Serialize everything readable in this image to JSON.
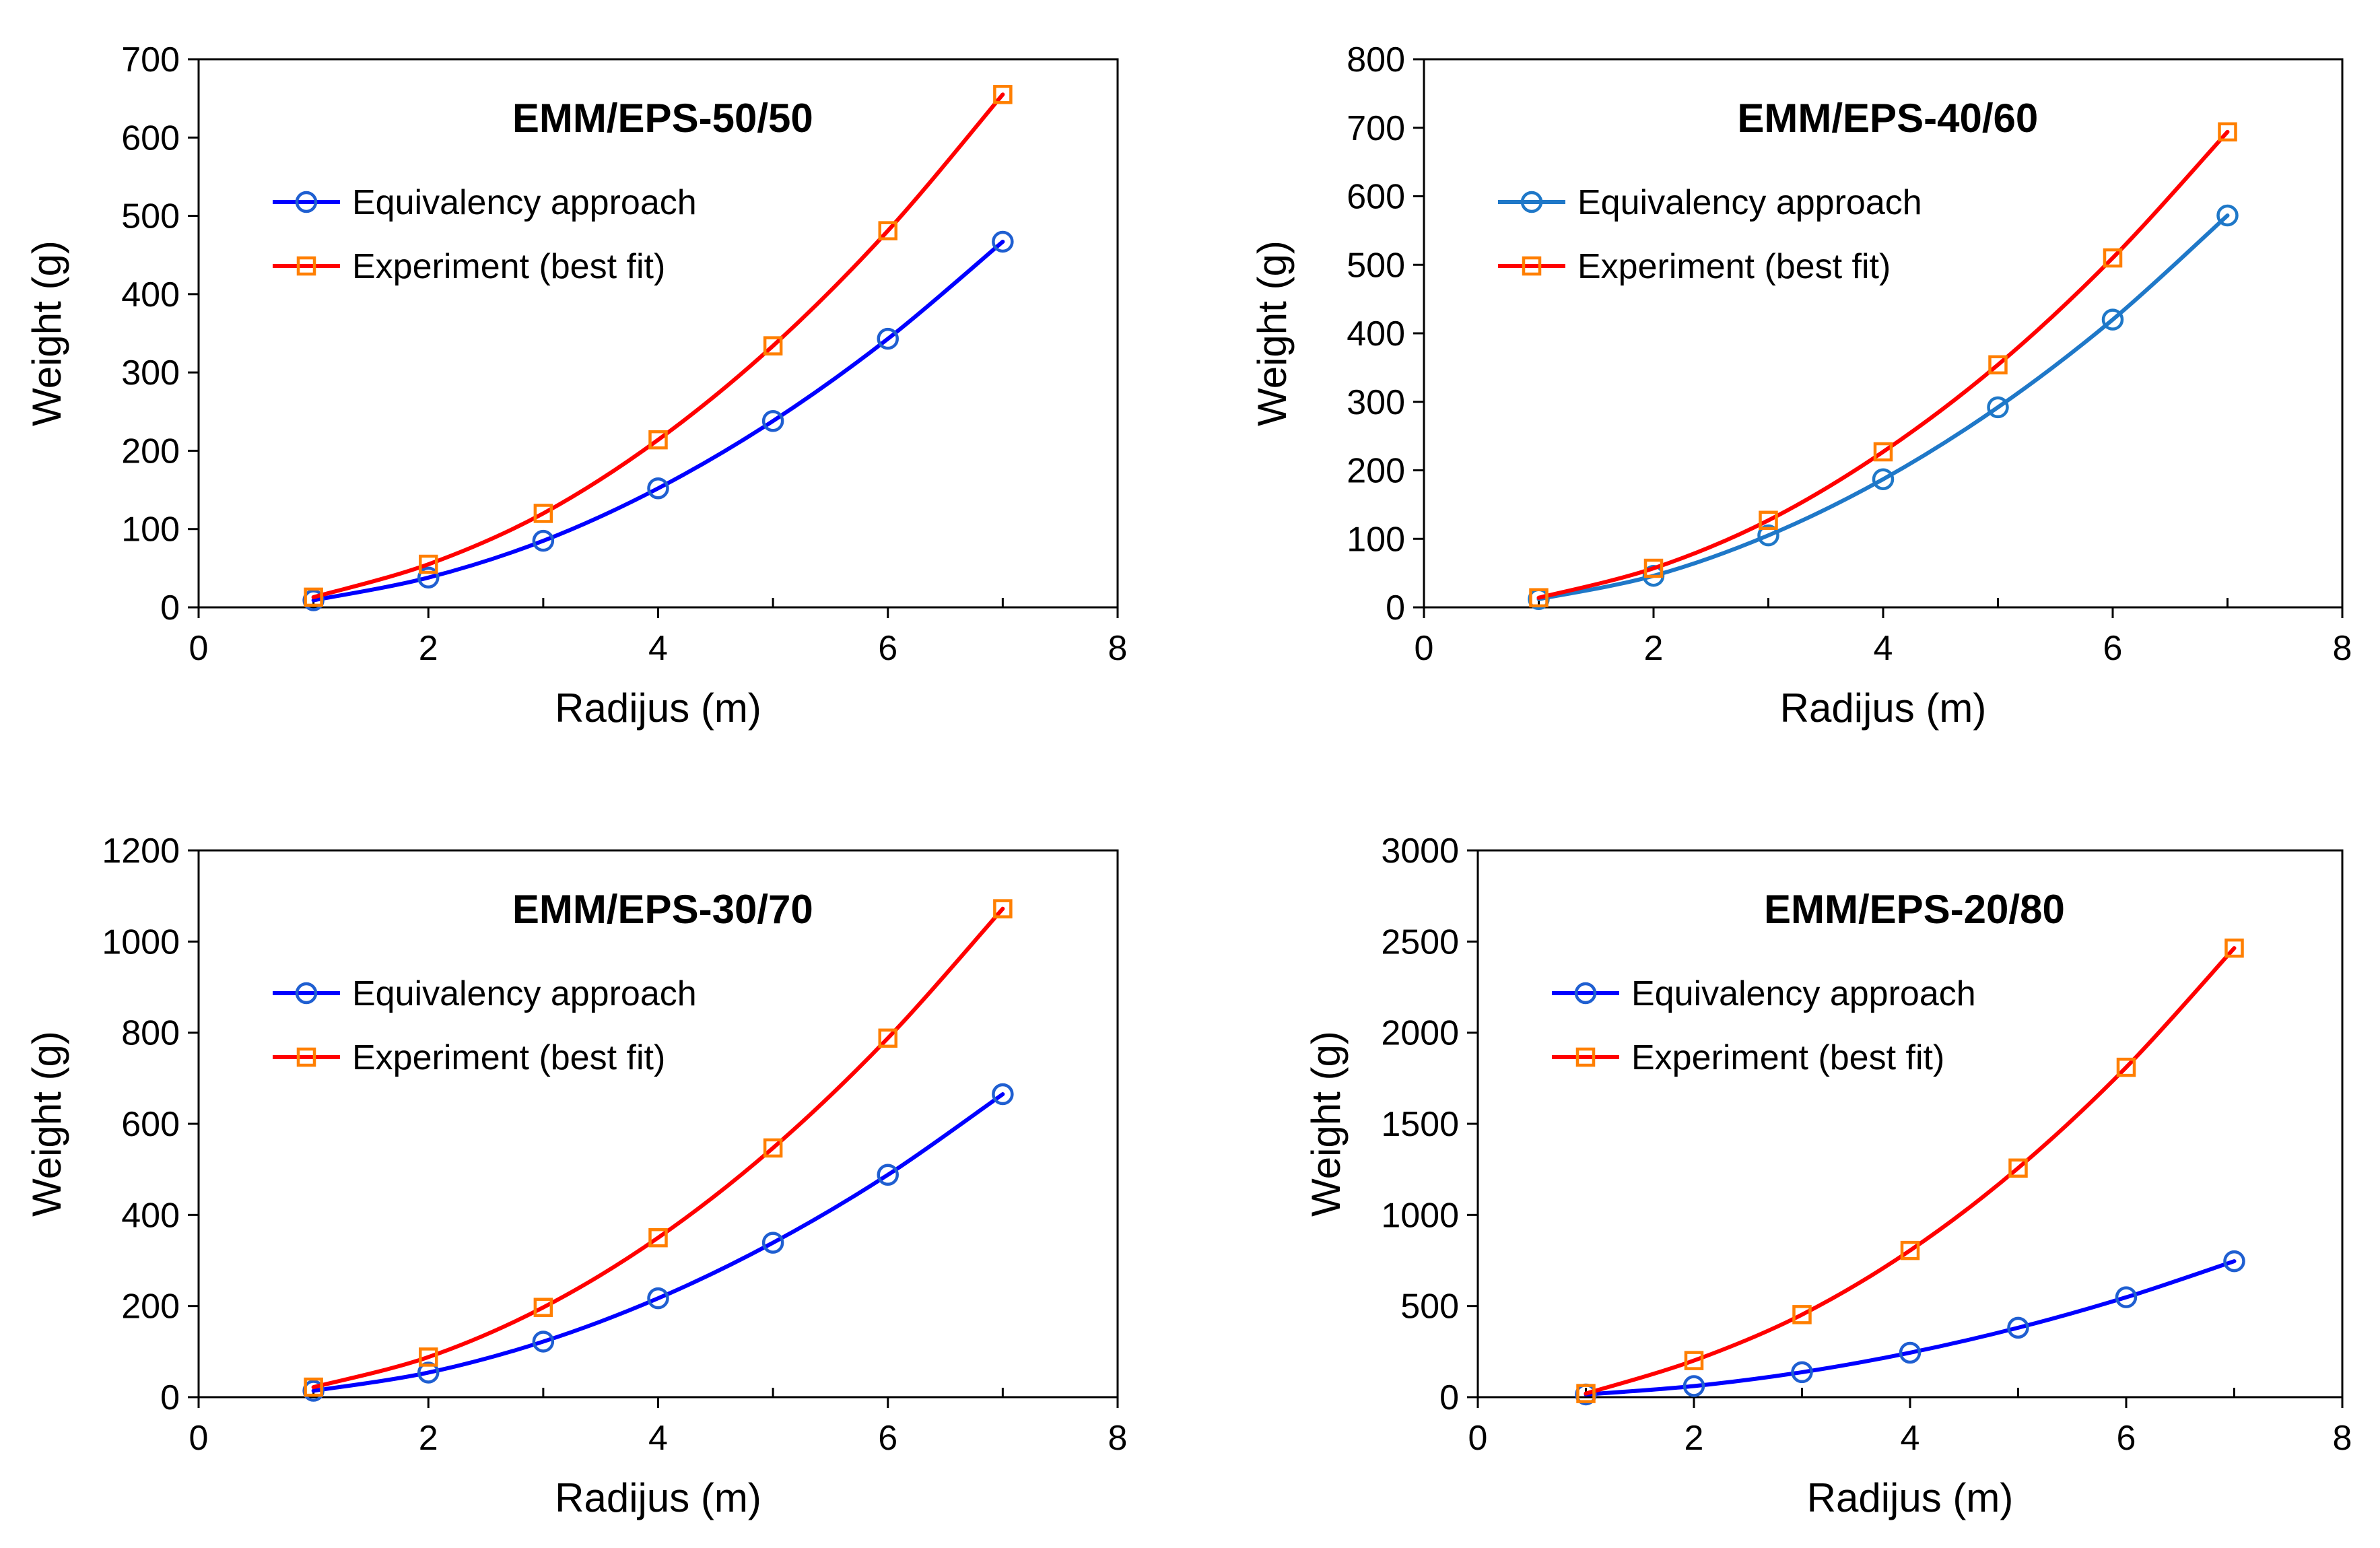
{
  "chart_data": [
    {
      "type": "line",
      "title": "EMM/EPS-50/50",
      "xlabel": "Radijus (m)",
      "ylabel": "Weight (g)",
      "xlim": [
        0,
        8
      ],
      "ylim": [
        0,
        700
      ],
      "xticks": [
        "0",
        "2",
        "4",
        "6",
        "8"
      ],
      "yticks": [
        "0",
        "100",
        "200",
        "300",
        "400",
        "500",
        "600",
        "700"
      ],
      "x": [
        1,
        2,
        3,
        4,
        5,
        6,
        7
      ],
      "series": [
        {
          "name": "Equivalency approach",
          "color": "#0000ff",
          "marker_color": "#1f5fd1",
          "marker": "circle",
          "values": [
            9,
            38,
            85,
            152,
            238,
            343,
            467
          ]
        },
        {
          "name": "Experiment (best fit)",
          "color": "#ff0000",
          "marker_color": "#ff7f00",
          "marker": "square",
          "values": [
            13,
            55,
            120,
            214,
            334,
            481,
            655
          ]
        }
      ],
      "legend": "top-left",
      "grid": false
    },
    {
      "type": "line",
      "title": "EMM/EPS-40/60",
      "xlabel": "Radijus (m)",
      "ylabel": "Weight (g)",
      "xlim": [
        0,
        8
      ],
      "ylim": [
        0,
        800
      ],
      "xticks": [
        "0",
        "2",
        "4",
        "6",
        "8"
      ],
      "yticks": [
        "0",
        "100",
        "200",
        "300",
        "400",
        "500",
        "600",
        "700",
        "800"
      ],
      "x": [
        1,
        2,
        3,
        4,
        5,
        6,
        7
      ],
      "series": [
        {
          "name": "Equivalency approach",
          "color": "#1f78c8",
          "marker_color": "#1f78c8",
          "marker": "circle",
          "values": [
            12,
            46,
            105,
            187,
            292,
            420,
            572
          ]
        },
        {
          "name": "Experiment (best fit)",
          "color": "#ff0000",
          "marker_color": "#ff7f00",
          "marker": "square",
          "values": [
            14,
            57,
            127,
            227,
            354,
            510,
            694
          ]
        }
      ],
      "legend": "top-left",
      "grid": false
    },
    {
      "type": "line",
      "title": "EMM/EPS-30/70",
      "xlabel": "Radijus (m)",
      "ylabel": "Weight (g)",
      "xlim": [
        0,
        8
      ],
      "ylim": [
        0,
        1200
      ],
      "xticks": [
        "0",
        "2",
        "4",
        "6",
        "8"
      ],
      "yticks": [
        "0",
        "200",
        "400",
        "600",
        "800",
        "1000",
        "1200"
      ],
      "x": [
        1,
        2,
        3,
        4,
        5,
        6,
        7
      ],
      "series": [
        {
          "name": "Equivalency approach",
          "color": "#0000ff",
          "marker_color": "#1f5fd1",
          "marker": "circle",
          "values": [
            14,
            54,
            122,
            217,
            339,
            488,
            665
          ]
        },
        {
          "name": "Experiment (best fit)",
          "color": "#ff0000",
          "marker_color": "#ff7f00",
          "marker": "square",
          "values": [
            22,
            88,
            197,
            350,
            547,
            788,
            1072
          ]
        }
      ],
      "legend": "top-left",
      "grid": false
    },
    {
      "type": "line",
      "title": "EMM/EPS-20/80",
      "xlabel": "Radijus (m)",
      "ylabel": "Weight (g)",
      "xlim": [
        0,
        8
      ],
      "ylim": [
        0,
        3000
      ],
      "xticks": [
        "0",
        "2",
        "4",
        "6",
        "8"
      ],
      "yticks": [
        "0",
        "500",
        "1000",
        "1500",
        "2000",
        "2500",
        "3000"
      ],
      "x": [
        1,
        2,
        3,
        4,
        5,
        6,
        7
      ],
      "series": [
        {
          "name": "Equivalency approach",
          "color": "#0000ff",
          "marker_color": "#1f5fd1",
          "marker": "circle",
          "values": [
            15,
            61,
            137,
            244,
            381,
            548,
            746
          ]
        },
        {
          "name": "Experiment (best fit)",
          "color": "#ff0000",
          "marker_color": "#ff7f00",
          "marker": "square",
          "values": [
            20,
            201,
            453,
            805,
            1257,
            1810,
            2464
          ]
        }
      ],
      "legend": "top-left",
      "grid": false
    }
  ]
}
